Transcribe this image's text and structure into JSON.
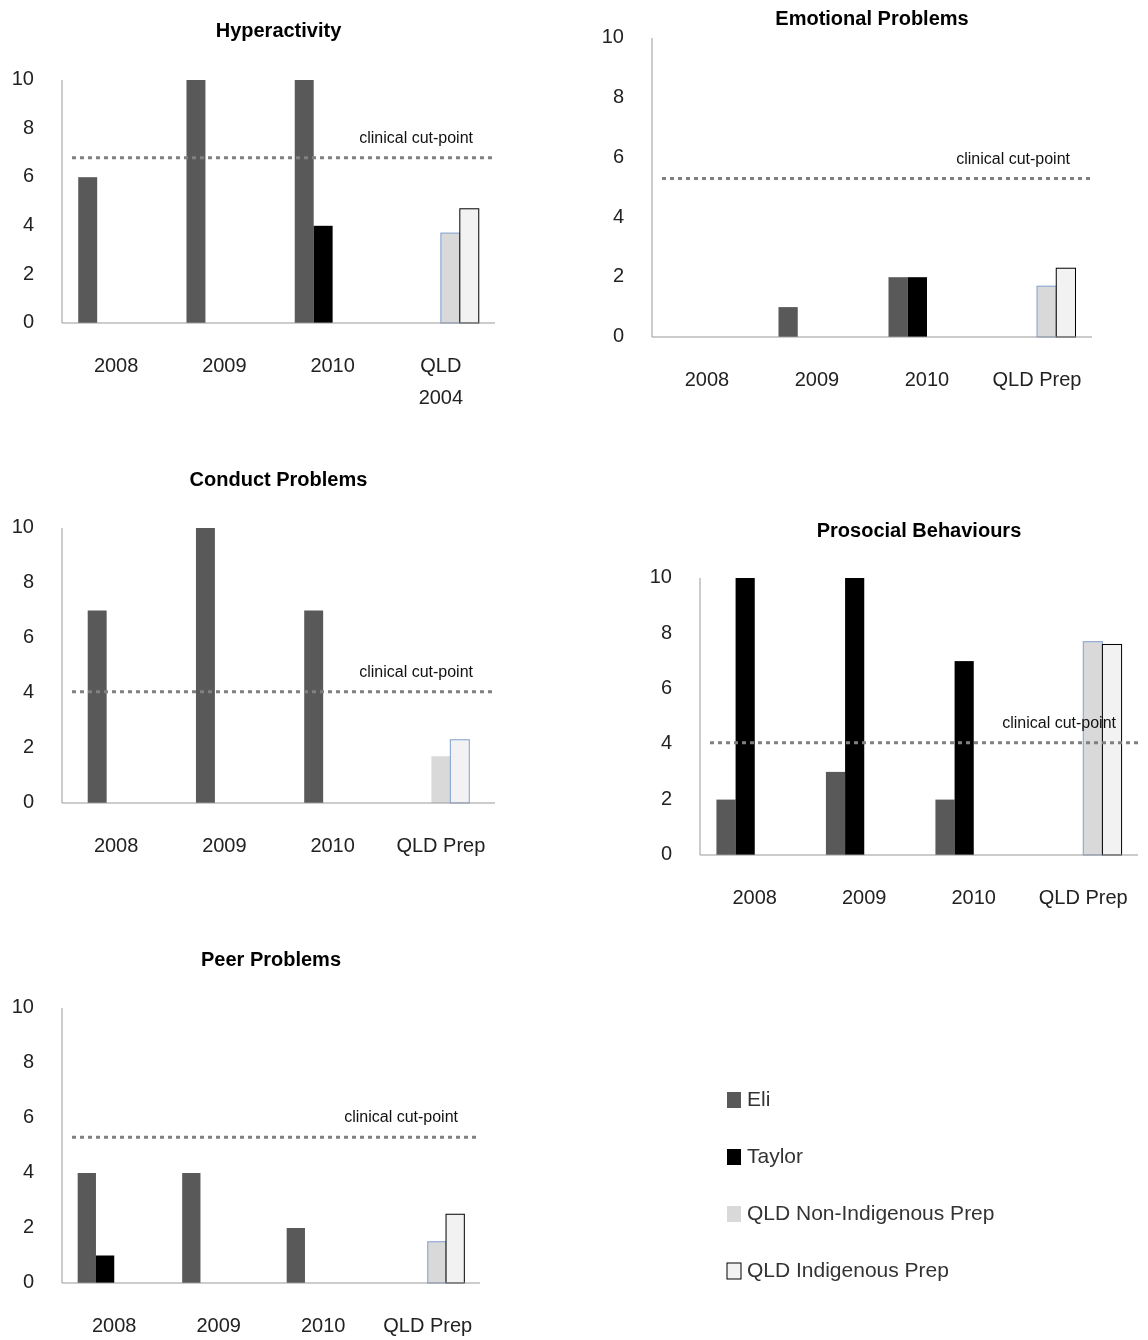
{
  "chart_data": [
    {
      "type": "bar",
      "title": "Hyperactivity",
      "categories": [
        "2008",
        "2009",
        "2010",
        "QLD 2004"
      ],
      "ylim": [
        0,
        10
      ],
      "yticks": [
        0,
        2,
        4,
        6,
        8,
        10
      ],
      "grid": false,
      "legend": false,
      "series": [
        {
          "color": "#595959",
          "values": [
            6,
            10,
            10,
            null
          ]
        },
        {
          "color": "#000000",
          "values": [
            null,
            null,
            4,
            null
          ]
        },
        {
          "color": "#d9d9d9",
          "values": [
            null,
            null,
            null,
            3.7
          ]
        },
        {
          "color": "#f2f2f2",
          "values": [
            null,
            null,
            null,
            4.7
          ]
        }
      ],
      "ref_lines": [
        {
          "axis": "y",
          "value": 6.8,
          "label": "clinical cut-point",
          "color": "#808080",
          "line_style": "dotted"
        }
      ]
    },
    {
      "type": "bar",
      "title": "Emotional Problems",
      "categories": [
        "2008",
        "2009",
        "2010",
        "QLD Prep"
      ],
      "ylim": [
        0,
        10
      ],
      "yticks": [
        0,
        2,
        4,
        6,
        8,
        10
      ],
      "grid": false,
      "legend": false,
      "series": [
        {
          "color": "#595959",
          "values": [
            null,
            1,
            2,
            null
          ]
        },
        {
          "color": "#000000",
          "values": [
            null,
            null,
            2,
            null
          ]
        },
        {
          "color": "#d9d9d9",
          "values": [
            null,
            null,
            null,
            1.7
          ]
        },
        {
          "color": "#f2f2f2",
          "values": [
            null,
            null,
            null,
            2.3
          ]
        }
      ],
      "ref_lines": [
        {
          "axis": "y",
          "value": 5.3,
          "label": "clinical cut-point",
          "color": "#808080",
          "line_style": "dotted"
        }
      ]
    },
    {
      "type": "bar",
      "title": "Conduct Problems",
      "categories": [
        "2008",
        "2009",
        "2010",
        "QLD Prep"
      ],
      "ylim": [
        0,
        10
      ],
      "yticks": [
        0,
        2,
        4,
        6,
        8,
        10
      ],
      "grid": false,
      "legend": false,
      "series": [
        {
          "color": "#595959",
          "values": [
            7,
            10,
            7,
            null
          ]
        },
        {
          "color": "#d9d9d9",
          "values": [
            null,
            null,
            null,
            1.7
          ]
        },
        {
          "color": "#f2f2f2",
          "values": [
            null,
            null,
            null,
            2.3
          ]
        }
      ],
      "ref_lines": [
        {
          "axis": "y",
          "value": 4.05,
          "label": "clinical cut-point",
          "color": "#808080",
          "line_style": "dotted"
        }
      ]
    },
    {
      "type": "bar",
      "title": "Prosocial Behaviours",
      "categories": [
        "2008",
        "2009",
        "2010",
        "QLD Prep"
      ],
      "ylim": [
        0,
        10
      ],
      "yticks": [
        0,
        2,
        4,
        6,
        8,
        10
      ],
      "grid": false,
      "legend": false,
      "series": [
        {
          "color": "#595959",
          "values": [
            2,
            3,
            2,
            null
          ]
        },
        {
          "color": "#000000",
          "values": [
            10,
            10,
            7,
            null
          ]
        },
        {
          "color": "#d9d9d9",
          "values": [
            null,
            null,
            null,
            7.7
          ]
        },
        {
          "color": "#f2f2f2",
          "values": [
            null,
            null,
            null,
            7.6
          ]
        }
      ],
      "ref_lines": [
        {
          "axis": "y",
          "value": 4.05,
          "label": "clinical cut-point",
          "color": "#808080",
          "line_style": "dotted"
        }
      ]
    },
    {
      "type": "bar",
      "title": "Peer Problems",
      "categories": [
        "2008",
        "2009",
        "2010",
        "QLD Prep"
      ],
      "ylim": [
        0,
        10
      ],
      "yticks": [
        0,
        2,
        4,
        6,
        8,
        10
      ],
      "grid": false,
      "legend": "right",
      "series": [
        {
          "name": "Eli",
          "color": "#595959",
          "values": [
            4,
            4,
            2,
            null
          ]
        },
        {
          "name": "Taylor",
          "color": "#000000",
          "values": [
            1,
            null,
            null,
            null
          ]
        },
        {
          "name": "QLD Non-Indigenous Prep",
          "color": "#d9d9d9",
          "values": [
            null,
            null,
            null,
            1.5
          ]
        },
        {
          "name": "QLD Indigenous Prep",
          "color": "#f2f2f2",
          "values": [
            null,
            null,
            null,
            2.5
          ]
        }
      ],
      "ref_lines": [
        {
          "axis": "y",
          "value": 5.3,
          "label": "clinical cut-point",
          "color": "#808080",
          "line_style": "dotted"
        }
      ]
    }
  ]
}
